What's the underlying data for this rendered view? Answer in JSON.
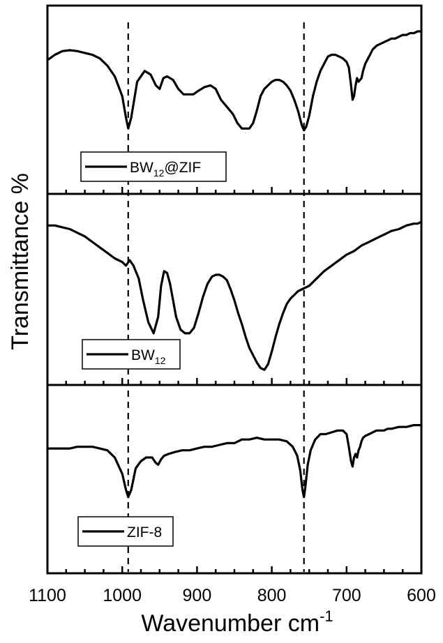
{
  "chart_data": {
    "type": "line",
    "title": "",
    "xlabel": "Wavenumber cm",
    "xlabel_sup": "-1",
    "ylabel": "Transmittance %",
    "xlim": [
      1100,
      600
    ],
    "x_reversed": true,
    "xticks": [
      1100,
      1000,
      900,
      800,
      700,
      600
    ],
    "grid": false,
    "reference_lines_x": [
      992,
      757
    ],
    "panels": [
      {
        "name": "BW12@ZIF",
        "legend": {
          "main": "BW",
          "sub": "12",
          "suffix": "@ZIF"
        },
        "ylim": [
          0,
          100
        ],
        "x": [
          1100,
          1090,
          1080,
          1070,
          1060,
          1050,
          1040,
          1030,
          1020,
          1010,
          1000,
          995,
          992,
          988,
          980,
          970,
          962,
          955,
          950,
          945,
          940,
          932,
          925,
          918,
          912,
          905,
          898,
          890,
          882,
          875,
          868,
          860,
          852,
          846,
          840,
          835,
          830,
          825,
          820,
          815,
          810,
          805,
          800,
          795,
          790,
          785,
          780,
          775,
          770,
          765,
          760,
          757,
          754,
          750,
          745,
          740,
          735,
          730,
          725,
          720,
          715,
          710,
          705,
          700,
          697,
          694,
          692,
          690,
          688,
          686,
          684,
          682,
          680,
          678,
          675,
          670,
          665,
          660,
          655,
          650,
          645,
          640,
          635,
          630,
          625,
          620,
          615,
          610,
          605,
          600
        ],
        "y": [
          72,
          75,
          77,
          77.5,
          77,
          76,
          75,
          73,
          69,
          63,
          52,
          40,
          34,
          40,
          60,
          66,
          64,
          58,
          56,
          62,
          63,
          61,
          56,
          53,
          53,
          53,
          55,
          57,
          58,
          56,
          50,
          46,
          42,
          37,
          34,
          34,
          34,
          37,
          44,
          52,
          56,
          58,
          60,
          61,
          61,
          60,
          58,
          55,
          50,
          44,
          36,
          33,
          35,
          41,
          52,
          60,
          66,
          70,
          74,
          75,
          75,
          74,
          73,
          71,
          68,
          58,
          50,
          52,
          58,
          62,
          60,
          61,
          62,
          66,
          70,
          74,
          78,
          80,
          81,
          82,
          83,
          84,
          84,
          85,
          86,
          86,
          87,
          87,
          88,
          88
        ]
      },
      {
        "name": "BW12",
        "legend": {
          "main": "BW",
          "sub": "12",
          "suffix": ""
        },
        "ylim": [
          0,
          100
        ],
        "x": [
          1100,
          1090,
          1080,
          1070,
          1060,
          1050,
          1040,
          1030,
          1020,
          1010,
          1000,
          995,
          990,
          985,
          978,
          972,
          965,
          958,
          952,
          948,
          944,
          940,
          936,
          932,
          928,
          922,
          916,
          910,
          904,
          898,
          892,
          886,
          880,
          875,
          870,
          865,
          860,
          855,
          850,
          845,
          840,
          835,
          830,
          825,
          820,
          815,
          810,
          805,
          800,
          795,
          790,
          785,
          780,
          775,
          770,
          765,
          760,
          755,
          750,
          745,
          740,
          735,
          730,
          720,
          710,
          700,
          690,
          680,
          670,
          660,
          650,
          640,
          630,
          620,
          610,
          605,
          600
        ],
        "y": [
          85,
          85,
          84,
          83,
          81,
          79,
          76,
          73,
          70,
          67,
          65,
          63,
          66,
          63,
          56,
          44,
          32,
          26,
          35,
          52,
          60,
          59,
          53,
          44,
          35,
          28,
          26,
          26,
          29,
          37,
          46,
          53,
          57,
          58,
          58,
          57,
          55,
          50,
          44,
          37,
          31,
          24,
          18,
          14,
          10,
          7,
          6,
          9,
          16,
          24,
          31,
          37,
          42,
          45,
          47,
          49,
          50,
          51,
          52,
          54,
          56,
          58,
          60,
          63,
          66,
          69,
          71,
          74,
          76,
          78,
          80,
          82,
          83,
          85,
          86,
          86,
          87
        ]
      },
      {
        "name": "ZIF-8",
        "legend": {
          "main": "ZIF-8",
          "sub": "",
          "suffix": ""
        },
        "ylim": [
          0,
          100
        ],
        "x": [
          1100,
          1090,
          1080,
          1070,
          1060,
          1050,
          1040,
          1030,
          1020,
          1010,
          1000,
          995,
          992,
          988,
          982,
          975,
          968,
          960,
          955,
          952,
          948,
          944,
          938,
          930,
          920,
          910,
          900,
          890,
          880,
          870,
          860,
          850,
          845,
          840,
          830,
          820,
          810,
          800,
          790,
          780,
          772,
          766,
          762,
          759,
          757,
          755,
          752,
          748,
          742,
          735,
          728,
          720,
          712,
          705,
          700,
          697,
          694,
          692,
          690,
          688,
          686,
          684,
          682,
          680,
          678,
          675,
          670,
          665,
          660,
          655,
          650,
          645,
          640,
          630,
          620,
          610,
          600
        ],
        "y": [
          67,
          67,
          67,
          67,
          68,
          68,
          68,
          67,
          66,
          62,
          53,
          44,
          40,
          44,
          56,
          60,
          62,
          62,
          59,
          58,
          61,
          63,
          64,
          65,
          66,
          66,
          67,
          68,
          68,
          69,
          70,
          70,
          71,
          72,
          72,
          73,
          72,
          72,
          72,
          71,
          68,
          63,
          55,
          44,
          40,
          46,
          58,
          66,
          72,
          75,
          75,
          76,
          77,
          77,
          75,
          68,
          60,
          57,
          62,
          64,
          62,
          66,
          68,
          71,
          73,
          74,
          75,
          76,
          77,
          77,
          77,
          78,
          78,
          79,
          79,
          80,
          80
        ]
      }
    ]
  }
}
